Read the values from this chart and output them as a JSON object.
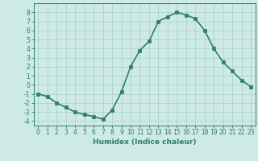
{
  "x": [
    0,
    1,
    2,
    3,
    4,
    5,
    6,
    7,
    8,
    9,
    10,
    11,
    12,
    13,
    14,
    15,
    16,
    17,
    18,
    19,
    20,
    21,
    22,
    23
  ],
  "y": [
    -1,
    -1.3,
    -2,
    -2.5,
    -3,
    -3.3,
    -3.5,
    -3.8,
    -2.8,
    -0.8,
    2,
    3.8,
    4.8,
    7,
    7.5,
    8,
    7.7,
    7.3,
    6,
    4,
    2.5,
    1.5,
    0.5,
    -0.2
  ],
  "line_color": "#2e7d6e",
  "marker": "s",
  "markersize": 2.5,
  "bg_color": "#ceeae4",
  "grid_color": "#a8cfc8",
  "xlabel": "Humidex (Indice chaleur)",
  "xlim": [
    -0.5,
    23.5
  ],
  "ylim": [
    -4.5,
    9
  ],
  "yticks": [
    -4,
    -3,
    -2,
    -1,
    0,
    1,
    2,
    3,
    4,
    5,
    6,
    7,
    8
  ],
  "xticks": [
    0,
    1,
    2,
    3,
    4,
    5,
    6,
    7,
    8,
    9,
    10,
    11,
    12,
    13,
    14,
    15,
    16,
    17,
    18,
    19,
    20,
    21,
    22,
    23
  ],
  "tick_color": "#2e7d6e",
  "linewidth": 1.2
}
